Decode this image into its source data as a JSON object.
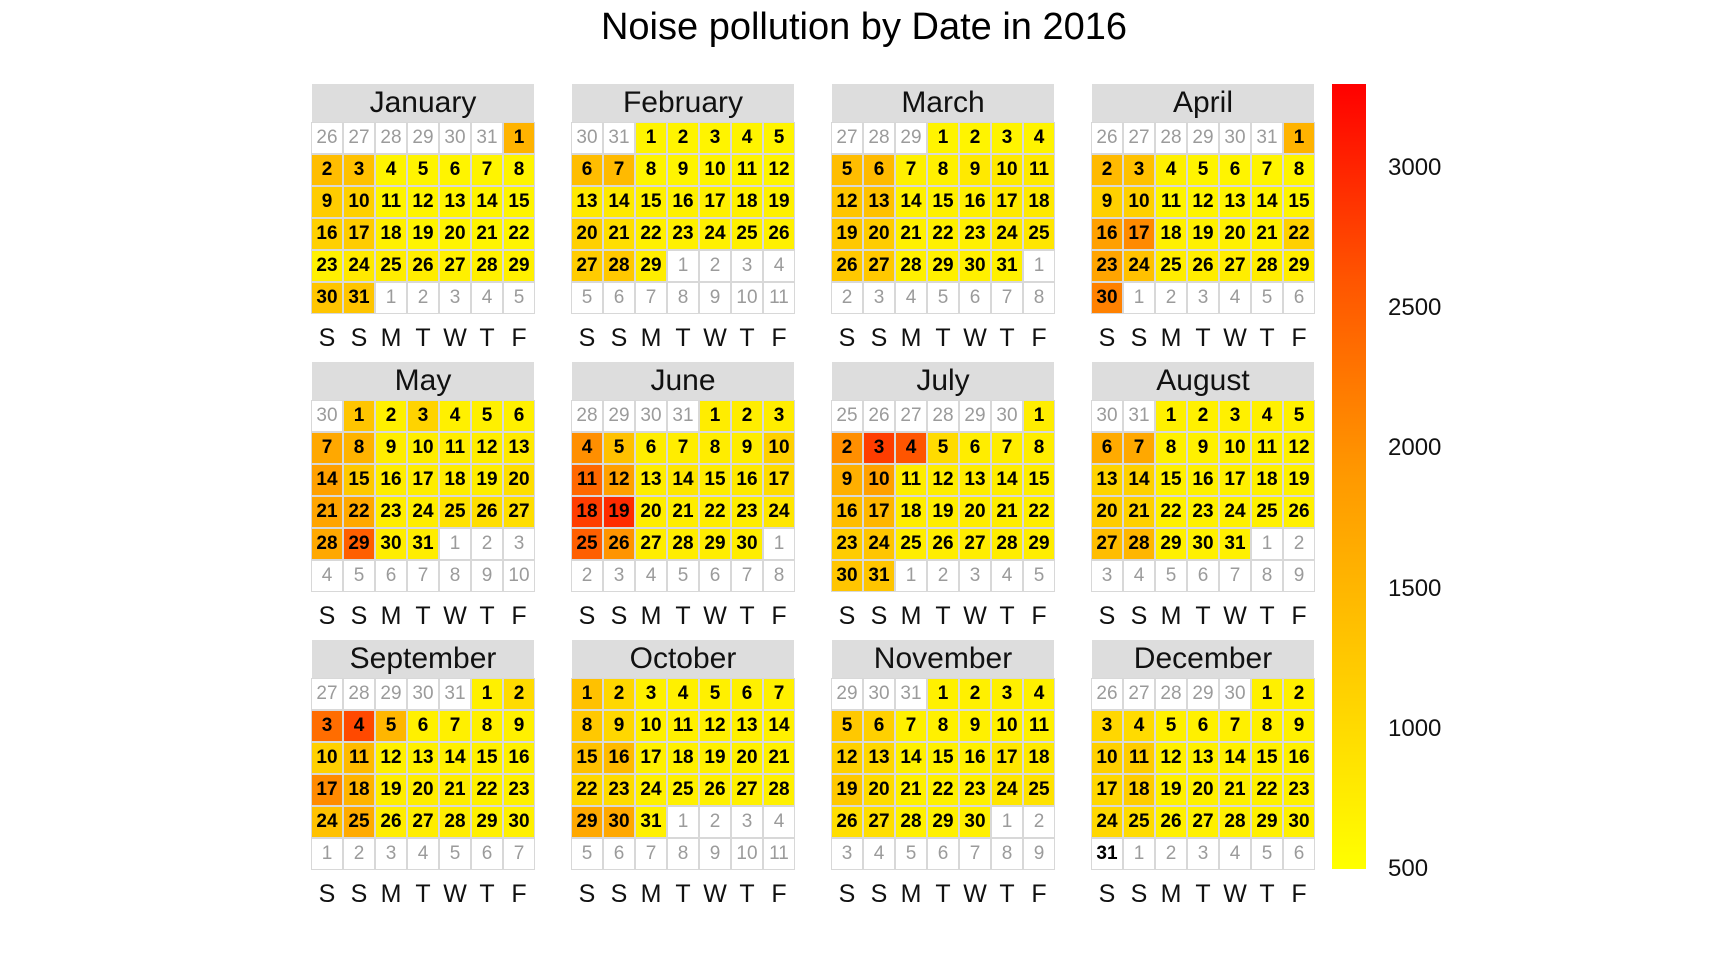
{
  "chart_data": {
    "type": "heatmap",
    "title": "Noise pollution by Date in 2016",
    "year": 2016,
    "weekday_labels": [
      "S",
      "S",
      "M",
      "T",
      "W",
      "T",
      "F"
    ],
    "week_start": "saturday",
    "color_scale": {
      "min": 500,
      "max": 3300,
      "ticks": [
        3000,
        2500,
        2000,
        1500,
        1000,
        500
      ],
      "colors": [
        "#ffff00",
        "#ffcc00",
        "#ff9900",
        "#ff5500",
        "#ff0000"
      ]
    },
    "legend_position": "right",
    "months": [
      {
        "name": "January",
        "values": [
          1550,
          1400,
          1350,
          650,
          650,
          650,
          650,
          650,
          1200,
          1150,
          650,
          650,
          650,
          650,
          650,
          1150,
          1200,
          700,
          650,
          650,
          650,
          650,
          700,
          800,
          750,
          750,
          700,
          700,
          700,
          1300,
          1300
        ]
      },
      {
        "name": "February",
        "values": [
          650,
          650,
          650,
          650,
          650,
          1400,
          1450,
          650,
          650,
          650,
          650,
          650,
          800,
          800,
          700,
          700,
          700,
          700,
          700,
          1150,
          950,
          700,
          700,
          700,
          700,
          700,
          1200,
          1250,
          750
        ]
      },
      {
        "name": "March",
        "values": [
          650,
          650,
          650,
          650,
          1400,
          1450,
          700,
          700,
          800,
          800,
          800,
          1300,
          1350,
          700,
          700,
          700,
          800,
          800,
          1250,
          1200,
          700,
          700,
          700,
          800,
          850,
          1250,
          1250,
          700,
          700,
          700,
          700
        ]
      },
      {
        "name": "April",
        "values": [
          1550,
          1450,
          1350,
          700,
          650,
          650,
          650,
          650,
          1150,
          1150,
          650,
          650,
          650,
          650,
          650,
          1800,
          2050,
          700,
          700,
          700,
          700,
          1150,
          1750,
          1350,
          750,
          750,
          750,
          750,
          750,
          2150
        ]
      },
      {
        "name": "May",
        "values": [
          1300,
          700,
          1100,
          700,
          700,
          700,
          1700,
          1550,
          750,
          750,
          750,
          750,
          800,
          1800,
          1250,
          750,
          750,
          750,
          750,
          950,
          1750,
          1700,
          750,
          750,
          900,
          950,
          950,
          1700,
          2500,
          750,
          750
        ]
      },
      {
        "name": "June",
        "values": [
          750,
          750,
          750,
          2000,
          1350,
          750,
          750,
          750,
          750,
          1150,
          2400,
          1800,
          750,
          850,
          750,
          800,
          1000,
          2800,
          2950,
          750,
          750,
          750,
          750,
          850,
          2500,
          1950,
          750,
          750,
          750,
          750
        ]
      },
      {
        "name": "July",
        "values": [
          750,
          2000,
          2800,
          2600,
          1000,
          750,
          750,
          750,
          1600,
          1800,
          750,
          750,
          750,
          750,
          750,
          1400,
          1500,
          750,
          750,
          750,
          750,
          750,
          1200,
          1300,
          750,
          750,
          750,
          750,
          750,
          1300,
          1300
        ]
      },
      {
        "name": "August",
        "values": [
          700,
          700,
          700,
          700,
          700,
          1650,
          1700,
          700,
          700,
          700,
          700,
          700,
          1100,
          1150,
          700,
          700,
          700,
          700,
          700,
          1200,
          1150,
          700,
          700,
          700,
          700,
          700,
          1400,
          1500,
          700,
          700,
          700
        ]
      },
      {
        "name": "September",
        "values": [
          700,
          1000,
          2350,
          2700,
          1500,
          700,
          700,
          700,
          700,
          1150,
          1450,
          700,
          700,
          700,
          700,
          700,
          2050,
          1550,
          750,
          750,
          750,
          700,
          700,
          1350,
          1650,
          750,
          750,
          750,
          700,
          700
        ]
      },
      {
        "name": "October",
        "values": [
          1350,
          1050,
          700,
          700,
          700,
          700,
          700,
          1250,
          1050,
          700,
          700,
          700,
          700,
          700,
          1350,
          1450,
          700,
          700,
          700,
          700,
          700,
          1050,
          1000,
          700,
          700,
          700,
          700,
          700,
          1700,
          1700,
          700
        ]
      },
      {
        "name": "November",
        "values": [
          700,
          700,
          700,
          700,
          1250,
          1150,
          700,
          700,
          700,
          700,
          700,
          1150,
          1050,
          700,
          700,
          700,
          850,
          800,
          1250,
          1000,
          700,
          700,
          700,
          850,
          900,
          950,
          950,
          700,
          700,
          700
        ]
      },
      {
        "name": "December",
        "values": [
          700,
          700,
          1050,
          1000,
          700,
          700,
          700,
          700,
          700,
          1150,
          1200,
          700,
          700,
          700,
          700,
          700,
          1050,
          1200,
          700,
          700,
          700,
          700,
          700,
          1050,
          1000,
          700,
          700,
          700,
          700,
          700,
          null
        ]
      }
    ]
  }
}
